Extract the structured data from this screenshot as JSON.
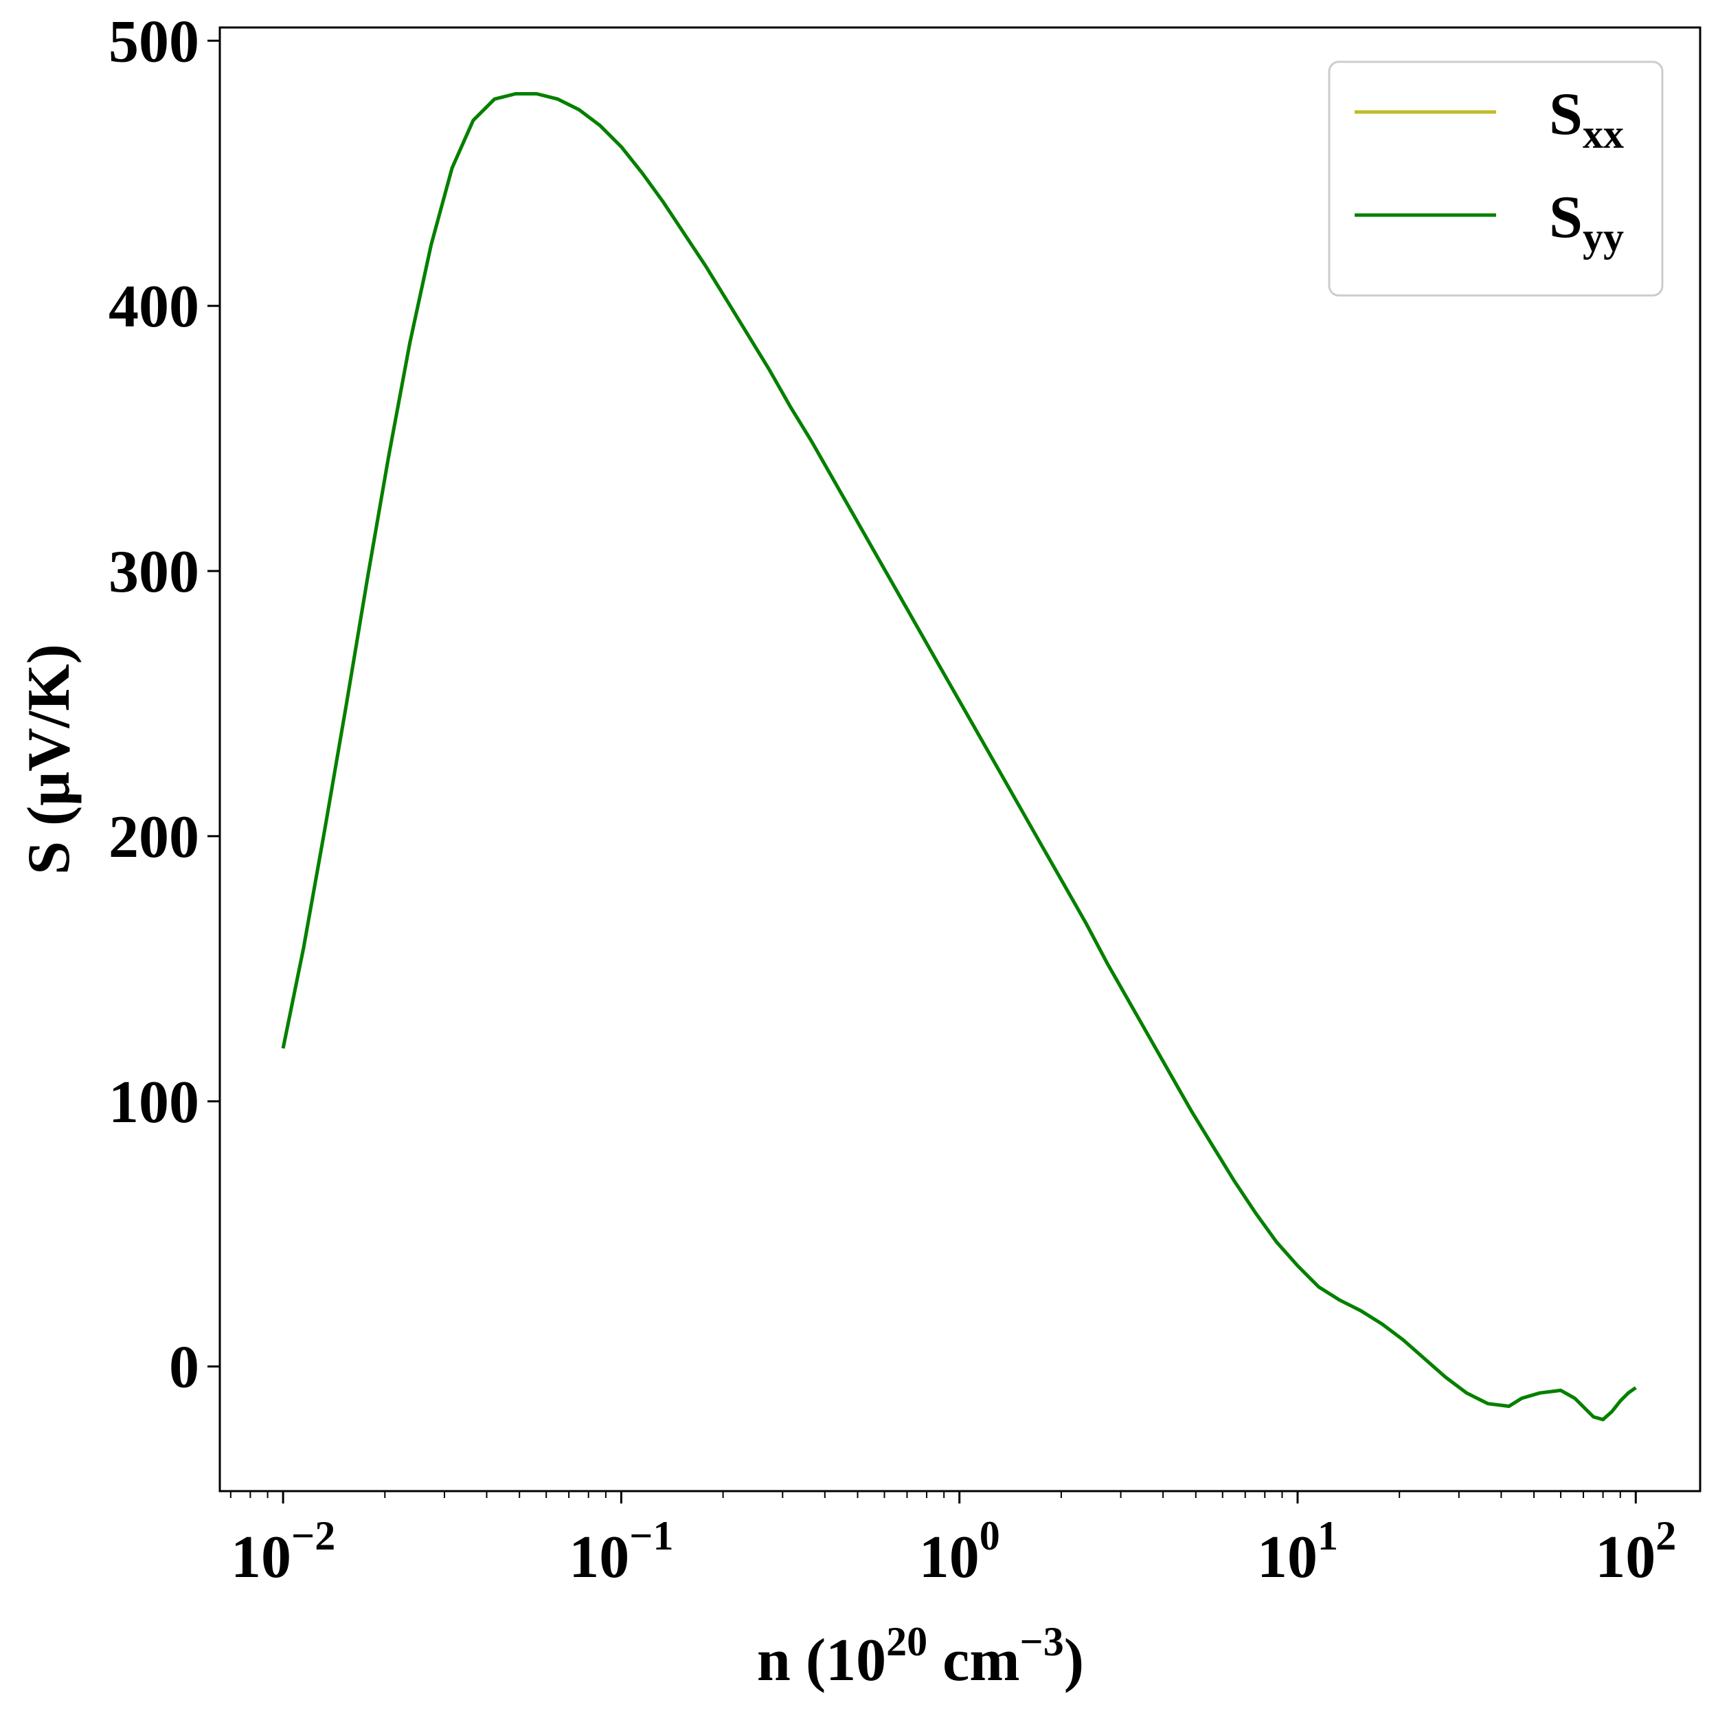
{
  "chart_data": {
    "type": "line",
    "x_scale": "log",
    "xlabel": {
      "base": "n (10",
      "exp1": "20",
      "mid": " cm",
      "exp2": "−3",
      "tail": ")"
    },
    "ylabel": "S (μV/K)",
    "xlim": [
      0.0065,
      155
    ],
    "ylim": [
      -47,
      505
    ],
    "x_ticks": [
      {
        "value": 0.01,
        "base": "10",
        "exp": "−2"
      },
      {
        "value": 0.1,
        "base": "10",
        "exp": "−1"
      },
      {
        "value": 1,
        "base": "10",
        "exp": "0"
      },
      {
        "value": 10,
        "base": "10",
        "exp": "1"
      },
      {
        "value": 100,
        "base": "10",
        "exp": "2"
      }
    ],
    "y_ticks": [
      {
        "value": 0,
        "label": "0"
      },
      {
        "value": 100,
        "label": "100"
      },
      {
        "value": 200,
        "label": "200"
      },
      {
        "value": 300,
        "label": "300"
      },
      {
        "value": 400,
        "label": "400"
      },
      {
        "value": 500,
        "label": "500"
      }
    ],
    "grid": false,
    "legend_position": "top-right",
    "series": [
      {
        "name": {
          "base": "S",
          "sub": "xx"
        },
        "color": "#bcbd22",
        "x": [
          0.01,
          0.0115,
          0.0133,
          0.0154,
          0.0178,
          0.0205,
          0.0237,
          0.0274,
          0.0316,
          0.0365,
          0.0422,
          0.0487,
          0.0533,
          0.0562,
          0.0649,
          0.075,
          0.0866,
          0.1,
          0.1155,
          0.1334,
          0.154,
          0.1778,
          0.2054,
          0.2371,
          0.2738,
          0.3162,
          0.3652,
          0.4217,
          0.487,
          0.5623,
          0.6494,
          0.75,
          0.866,
          1.0,
          1.155,
          1.334,
          1.54,
          1.778,
          2.054,
          2.371,
          2.738,
          3.162,
          3.652,
          4.217,
          4.87,
          5.623,
          6.494,
          7.5,
          8.66,
          10.0,
          11.55,
          13.34,
          15.4,
          17.78,
          20.54,
          23.71,
          27.38,
          31.62,
          36.52,
          42.17,
          46.0,
          52.0,
          60.0,
          66.0,
          71.0,
          75.0,
          80.0,
          85.0,
          90.0,
          95.0,
          100.0
        ],
        "y": [
          120,
          158,
          203,
          250,
          298,
          343,
          386,
          423,
          452,
          470,
          478,
          480,
          480,
          480,
          478,
          474,
          468,
          460,
          450,
          439,
          427,
          415,
          402,
          389,
          376,
          362,
          349,
          335,
          321,
          307,
          293,
          279,
          265,
          251,
          237,
          223,
          209,
          195,
          181,
          167,
          152,
          138,
          124,
          110,
          96,
          83,
          70,
          58,
          47,
          38,
          30,
          25,
          21,
          16,
          10,
          3,
          -4,
          -10,
          -14,
          -15,
          -12,
          -10,
          -9,
          -12,
          -16,
          -19,
          -20,
          -17,
          -13,
          -10,
          -8
        ]
      },
      {
        "name": {
          "base": "S",
          "sub": "yy"
        },
        "color": "#008000",
        "x": [
          0.01,
          0.0115,
          0.0133,
          0.0154,
          0.0178,
          0.0205,
          0.0237,
          0.0274,
          0.0316,
          0.0365,
          0.0422,
          0.0487,
          0.0533,
          0.0562,
          0.0649,
          0.075,
          0.0866,
          0.1,
          0.1155,
          0.1334,
          0.154,
          0.1778,
          0.2054,
          0.2371,
          0.2738,
          0.3162,
          0.3652,
          0.4217,
          0.487,
          0.5623,
          0.6494,
          0.75,
          0.866,
          1.0,
          1.155,
          1.334,
          1.54,
          1.778,
          2.054,
          2.371,
          2.738,
          3.162,
          3.652,
          4.217,
          4.87,
          5.623,
          6.494,
          7.5,
          8.66,
          10.0,
          11.55,
          13.34,
          15.4,
          17.78,
          20.54,
          23.71,
          27.38,
          31.62,
          36.52,
          42.17,
          46.0,
          52.0,
          60.0,
          66.0,
          71.0,
          75.0,
          80.0,
          85.0,
          90.0,
          95.0,
          100.0
        ],
        "y": [
          120,
          158,
          203,
          250,
          298,
          343,
          386,
          423,
          452,
          470,
          478,
          480,
          480,
          480,
          478,
          474,
          468,
          460,
          450,
          439,
          427,
          415,
          402,
          389,
          376,
          362,
          349,
          335,
          321,
          307,
          293,
          279,
          265,
          251,
          237,
          223,
          209,
          195,
          181,
          167,
          152,
          138,
          124,
          110,
          96,
          83,
          70,
          58,
          47,
          38,
          30,
          25,
          21,
          16,
          10,
          3,
          -4,
          -10,
          -14,
          -15,
          -12,
          -10,
          -9,
          -12,
          -16,
          -19,
          -20,
          -17,
          -13,
          -10,
          -8
        ]
      }
    ]
  }
}
